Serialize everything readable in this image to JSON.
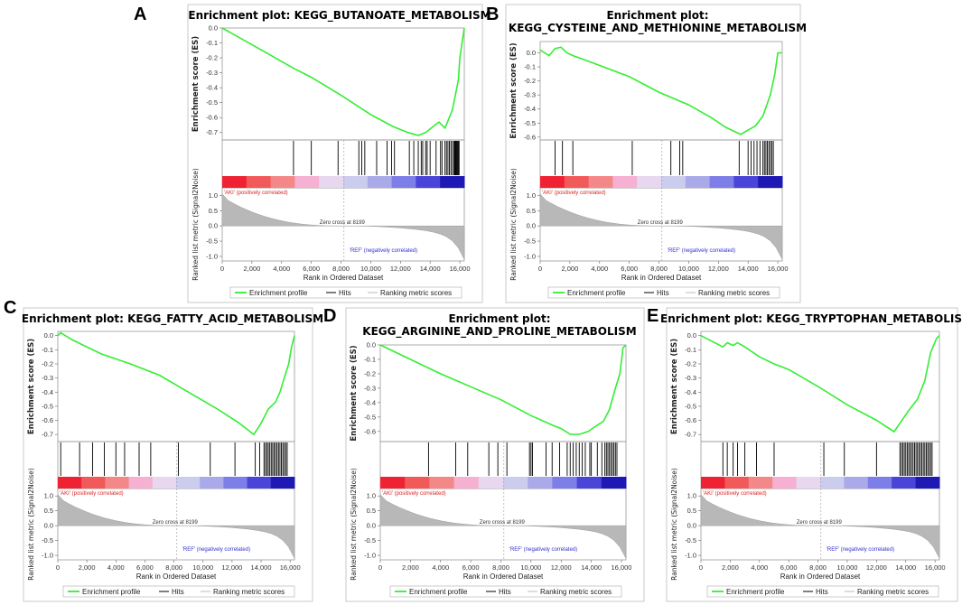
{
  "colors": {
    "es_line": "#33ee33",
    "hits": "#000000",
    "metric_fill": "#b8b8b8",
    "pos_label": "#dd2222",
    "neg_label": "#3333cc",
    "heat": [
      "#ee2233",
      "#f25a5a",
      "#f48888",
      "#f6b0d2",
      "#e8d8ef",
      "#ccccee",
      "#aaaaea",
      "#7e7ee8",
      "#4a44d8",
      "#1e18b4"
    ]
  },
  "common": {
    "es_axis_label": "Enrichment score (ES)",
    "metric_axis_label": "Ranked list metric (Signal2Noise)",
    "x_axis_label": "Rank in Ordered Dataset",
    "pos_label": "'AKI' (positively correlated)",
    "neg_label": "'REF' (negatively correlated)",
    "zero_cross": "Zero cross at 8199",
    "zero_cross_rank": 8199,
    "x_max": 16300,
    "x_ticks": [
      0,
      2000,
      4000,
      6000,
      8000,
      10000,
      12000,
      14000,
      16000
    ],
    "x_tick_labels": [
      "0",
      "2,000",
      "4,000",
      "6,000",
      "8,000",
      "10,000",
      "12,000",
      "14,000",
      "16,000"
    ],
    "metric_ticks": [
      1.0,
      0.5,
      0.0,
      -0.5,
      -1.0
    ],
    "metric_tick_labels": [
      "1.0",
      "0.5",
      "0.0",
      "-0.5",
      "-1.0"
    ],
    "legend": [
      "Enrichment profile",
      "Hits",
      "Ranking metric scores"
    ]
  },
  "chart_data": [
    {
      "panel": "A",
      "type": "line",
      "title_lines": [
        "Enrichment plot: KEGG_BUTANOATE_METABOLISM"
      ],
      "ylim": [
        -0.75,
        0.0
      ],
      "y_ticks": [
        0.0,
        -0.1,
        -0.2,
        -0.3,
        -0.4,
        -0.5,
        -0.6,
        -0.7
      ],
      "y_tick_labels": [
        "0.0",
        "-0.1",
        "-0.2",
        "-0.3",
        "-0.4",
        "-0.5",
        "-0.6",
        "-0.7"
      ],
      "es_x": [
        0,
        2500,
        4800,
        6000,
        8000,
        10000,
        11500,
        12500,
        13200,
        13700,
        14200,
        14600,
        15000,
        15500,
        15900,
        16000,
        16150,
        16300
      ],
      "es_y": [
        0.0,
        -0.14,
        -0.27,
        -0.33,
        -0.45,
        -0.58,
        -0.66,
        -0.7,
        -0.72,
        -0.7,
        -0.66,
        -0.63,
        -0.67,
        -0.55,
        -0.35,
        -0.2,
        -0.1,
        0.0
      ],
      "hits": [
        4800,
        6000,
        7800,
        9200,
        9400,
        9600,
        10400,
        11100,
        11400,
        11600,
        12600,
        12900,
        13200,
        13400,
        13500,
        13700,
        13800,
        14000,
        14400,
        14700,
        14800,
        15000,
        15100,
        15200,
        15300,
        15400,
        15500,
        15600,
        15650,
        15700,
        15750,
        15800,
        15850,
        15900,
        15950
      ]
    },
    {
      "panel": "B",
      "type": "line",
      "title_lines": [
        "Enrichment plot:",
        "KEGG_CYSTEINE_AND_METHIONINE_METABOLISM"
      ],
      "ylim": [
        -0.62,
        0.08
      ],
      "y_ticks": [
        0.0,
        -0.1,
        -0.2,
        -0.3,
        -0.4,
        -0.5,
        -0.6
      ],
      "y_tick_labels": [
        "0.0",
        "-0.1",
        "-0.2",
        "-0.3",
        "-0.4",
        "-0.5",
        "-0.6"
      ],
      "es_x": [
        0,
        300,
        600,
        1000,
        1400,
        1800,
        2200,
        3000,
        4000,
        6000,
        8000,
        10000,
        11500,
        12500,
        13500,
        14000,
        14500,
        15000,
        15500,
        15800,
        16000,
        16300
      ],
      "es_y": [
        0.02,
        0.0,
        -0.02,
        0.03,
        0.04,
        0.0,
        -0.02,
        -0.05,
        -0.09,
        -0.17,
        -0.28,
        -0.37,
        -0.46,
        -0.53,
        -0.58,
        -0.55,
        -0.52,
        -0.45,
        -0.3,
        -0.15,
        0.0,
        0.0
      ],
      "hits": [
        1000,
        1500,
        2200,
        6200,
        8800,
        9400,
        9600,
        13400,
        14000,
        14200,
        14400,
        14600,
        14800,
        15000,
        15100,
        15200,
        15300,
        15400,
        15500,
        15600,
        15700
      ]
    },
    {
      "panel": "C",
      "type": "line",
      "title_lines": [
        "Enrichment plot: KEGG_FATTY_ACID_METABOLISM"
      ],
      "ylim": [
        -0.75,
        0.03
      ],
      "y_ticks": [
        0.0,
        -0.1,
        -0.2,
        -0.3,
        -0.4,
        -0.5,
        -0.6,
        -0.7
      ],
      "y_tick_labels": [
        "0.0",
        "-0.1",
        "-0.2",
        "-0.3",
        "-0.4",
        "-0.5",
        "-0.6",
        "-0.7"
      ],
      "es_x": [
        0,
        200,
        1000,
        3000,
        5000,
        7000,
        9000,
        11000,
        12500,
        13500,
        14000,
        14500,
        15000,
        15300,
        15600,
        15900,
        16100,
        16300
      ],
      "es_y": [
        0.0,
        0.02,
        -0.03,
        -0.13,
        -0.2,
        -0.28,
        -0.4,
        -0.52,
        -0.62,
        -0.7,
        -0.62,
        -0.52,
        -0.47,
        -0.4,
        -0.3,
        -0.2,
        -0.08,
        0.0
      ],
      "hits": [
        200,
        1500,
        2400,
        3200,
        4000,
        4600,
        5600,
        6400,
        8300,
        10500,
        12200,
        13600,
        13900,
        14200,
        14300,
        14400,
        14500,
        14600,
        14700,
        14800,
        14900,
        15000,
        15100,
        15200,
        15300,
        15400,
        15500,
        15600,
        15700,
        15800
      ]
    },
    {
      "panel": "D",
      "type": "line",
      "title_lines": [
        "Enrichment plot:",
        "KEGG_ARGININE_AND_PROLINE_METABOLISM"
      ],
      "ylim": [
        -0.67,
        0.0
      ],
      "y_ticks": [
        0.0,
        -0.1,
        -0.2,
        -0.3,
        -0.4,
        -0.5,
        -0.6
      ],
      "y_tick_labels": [
        "0.0",
        "-0.1",
        "-0.2",
        "-0.3",
        "-0.4",
        "-0.5",
        "-0.6"
      ],
      "es_x": [
        0,
        2000,
        4000,
        6000,
        8000,
        10000,
        11500,
        12000,
        12600,
        13200,
        13800,
        14200,
        14800,
        15200,
        15600,
        15900,
        16100,
        16300
      ],
      "es_y": [
        0.0,
        -0.1,
        -0.2,
        -0.29,
        -0.38,
        -0.49,
        -0.56,
        -0.58,
        -0.62,
        -0.62,
        -0.6,
        -0.57,
        -0.53,
        -0.45,
        -0.3,
        -0.2,
        -0.02,
        0.0
      ],
      "hits": [
        3200,
        5000,
        5800,
        7200,
        7800,
        8400,
        9900,
        10000,
        10100,
        11000,
        11400,
        11900,
        12400,
        12600,
        12800,
        13000,
        13200,
        13400,
        13600,
        13900,
        14000,
        14400,
        14700,
        14900,
        15000,
        15100,
        15200,
        15300,
        15400,
        15500,
        15600,
        15700
      ]
    },
    {
      "panel": "E",
      "type": "line",
      "title_lines": [
        "Enrichment plot: KEGG_TRYPTOPHAN_METABOLISM"
      ],
      "ylim": [
        -0.75,
        0.03
      ],
      "y_ticks": [
        0.0,
        -0.1,
        -0.2,
        -0.3,
        -0.4,
        -0.5,
        -0.6,
        -0.7
      ],
      "y_tick_labels": [
        "0.0",
        "-0.1",
        "-0.2",
        "-0.3",
        "-0.4",
        "-0.5",
        "-0.6",
        "-0.7"
      ],
      "es_x": [
        0,
        1500,
        1800,
        2200,
        2500,
        3000,
        4000,
        5000,
        6000,
        8000,
        10000,
        12000,
        13200,
        13600,
        14200,
        14800,
        15300,
        15700,
        16100,
        16300
      ],
      "es_y": [
        0.0,
        -0.08,
        -0.05,
        -0.07,
        -0.05,
        -0.08,
        -0.15,
        -0.2,
        -0.24,
        -0.36,
        -0.49,
        -0.6,
        -0.68,
        -0.62,
        -0.53,
        -0.45,
        -0.32,
        -0.12,
        -0.02,
        0.0
      ],
      "hits": [
        1500,
        1800,
        2200,
        2500,
        3000,
        3800,
        5000,
        8400,
        9800,
        12000,
        13600,
        13700,
        13800,
        13900,
        14000,
        14100,
        14200,
        14300,
        14400,
        14500,
        14600,
        14700,
        14800,
        14900,
        15000,
        15100,
        15200,
        15300,
        15400,
        15500,
        15600,
        15700,
        15800
      ]
    }
  ]
}
